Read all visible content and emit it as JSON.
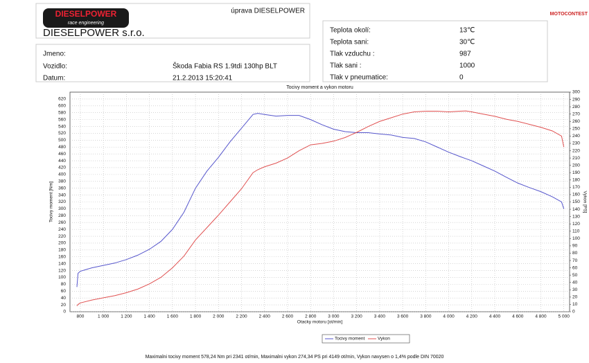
{
  "header": {
    "logo_text": "DIESELPOWER",
    "logo_subtitle": "race engineering",
    "company": "DIESELPOWER s.r.o.",
    "service": "úprava DIESELPOWER",
    "partner": "MOTOCONTEST"
  },
  "vehicle": {
    "name_label": "Jmeno:",
    "car_label": "Vozidlo:",
    "car": "Škoda Fabia RS 1.9tdi 130hp BLT",
    "date_label": "Datum:",
    "date": "21.2.2013 15:20:41"
  },
  "conditions": [
    [
      "Teplota okolí:",
      "13℃"
    ],
    [
      "Teplota sani:",
      "30℃"
    ],
    [
      "Tlak vzduchu :",
      "987"
    ],
    [
      "Tlak sani :",
      "1000"
    ],
    [
      "Tlak v pneumatice:",
      "0"
    ]
  ],
  "chart_data": {
    "type": "line",
    "title": "Tocivy moment a vykon motoru",
    "x_label": "Otacky motoru [ot/min]",
    "y_label": "Tocivy moment [Nm]",
    "y2_label": "Vykon [PS]",
    "x": [
      770,
      780,
      800,
      900,
      1000,
      1100,
      1200,
      1300,
      1400,
      1500,
      1600,
      1700,
      1800,
      1900,
      2000,
      2100,
      2200,
      2300,
      2341,
      2400,
      2500,
      2600,
      2700,
      2800,
      2900,
      3000,
      3100,
      3200,
      3300,
      3400,
      3500,
      3600,
      3700,
      3800,
      3900,
      4000,
      4100,
      4149,
      4200,
      4300,
      4400,
      4500,
      4600,
      4700,
      4800,
      4900,
      4980,
      5000
    ],
    "series": [
      {
        "name": "Tocivy moment",
        "color": "#5555cc",
        "values": [
          72,
          112,
          118,
          128,
          135,
          142,
          152,
          165,
          182,
          205,
          240,
          290,
          360,
          410,
          450,
          495,
          535,
          575,
          578.24,
          575,
          570,
          572,
          572,
          560,
          545,
          532,
          525,
          522,
          522,
          518,
          515,
          508,
          505,
          495,
          480,
          465,
          452,
          446,
          440,
          425,
          410,
          392,
          375,
          362,
          350,
          335,
          320,
          300
        ]
      },
      {
        "name": "Vykon",
        "color": "#e05050",
        "axis": "y2",
        "values": [
          8,
          10,
          12,
          16,
          19,
          22,
          26,
          31,
          38,
          47,
          60,
          76,
          98,
          115,
          132,
          150,
          168,
          190,
          194,
          198,
          203,
          210,
          220,
          228,
          230,
          233,
          238,
          245,
          253,
          260,
          265,
          270,
          273,
          274,
          274,
          273,
          274,
          274.34,
          273,
          270,
          267,
          263,
          260,
          256,
          252,
          247,
          240,
          225
        ]
      }
    ],
    "xlim": [
      710,
      5050
    ],
    "xticks": [
      800,
      {
        "value": 1000,
        "label": "1 000"
      },
      {
        "value": 1200,
        "label": "1 200"
      },
      {
        "value": 1400,
        "label": "1 400"
      },
      {
        "value": 1600,
        "label": "1 600"
      },
      {
        "value": 1800,
        "label": "1 800"
      },
      {
        "value": 2000,
        "label": "2 000"
      },
      {
        "value": 2200,
        "label": "2 200"
      },
      {
        "value": 2400,
        "label": "2 400"
      },
      {
        "value": 2600,
        "label": "2 600"
      },
      {
        "value": 2800,
        "label": "2 800"
      },
      {
        "value": 3000,
        "label": "3 000"
      },
      {
        "value": 3200,
        "label": "3 200"
      },
      {
        "value": 3400,
        "label": "3 400"
      },
      {
        "value": 3600,
        "label": "3 600"
      },
      {
        "value": 3800,
        "label": "3 800"
      },
      {
        "value": 4000,
        "label": "4 000"
      },
      {
        "value": 4200,
        "label": "4 200"
      },
      {
        "value": 4400,
        "label": "4 400"
      },
      {
        "value": 4600,
        "label": "4 600"
      },
      {
        "value": 4800,
        "label": "4 800"
      },
      {
        "value": 5000,
        "label": "5 000"
      }
    ],
    "ylim": [
      0,
      640
    ],
    "yticks": [
      0,
      20,
      40,
      60,
      80,
      100,
      120,
      140,
      160,
      180,
      200,
      220,
      240,
      260,
      280,
      300,
      320,
      340,
      360,
      380,
      400,
      420,
      440,
      460,
      480,
      500,
      520,
      540,
      560,
      580,
      600,
      620
    ],
    "y2lim": [
      0,
      300
    ],
    "y2ticks": [
      0,
      10,
      20,
      30,
      40,
      50,
      60,
      70,
      80,
      90,
      100,
      110,
      120,
      130,
      140,
      150,
      160,
      170,
      180,
      190,
      200,
      210,
      220,
      230,
      240,
      250,
      260,
      270,
      280,
      290,
      300
    ],
    "grid": true,
    "legend": "bottom",
    "footer": "Maximalni tocivy moment 578,24 Nm pri 2341 ot/min,  Maximalni vykon 274,34 PS pri 4149 ot/min,  Vykon navysen o 1,4% podle DIN 70020"
  }
}
